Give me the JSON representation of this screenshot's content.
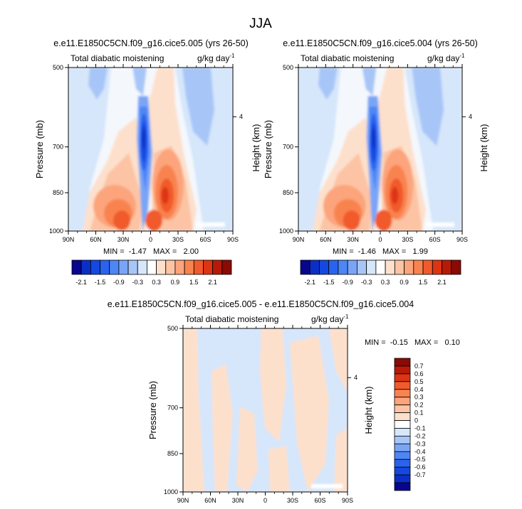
{
  "figure_title": "JJA",
  "panels": [
    {
      "title": "e.e11.E1850C5CN.f09_g16.cice5.005 (yrs 26-50)",
      "left_string": "Total diabatic moistening",
      "right_string": "g/kg day",
      "right_string_sup": "-1",
      "ylabel": "Pressure (mb)",
      "ylabel_right": "Height (km)",
      "minmax": "MIN =  -1.47   MAX =   2.00"
    },
    {
      "title": "e.e11.E1850C5CN.f09_g16.cice5.004 (yrs 26-50)",
      "left_string": "Total diabatic moistening",
      "right_string": "g/kg day",
      "right_string_sup": "-1",
      "ylabel": "Pressure (mb)",
      "ylabel_right": "Height (km)",
      "minmax": "MIN =  -1.46   MAX =   1.99"
    },
    {
      "title": "e.e11.E1850C5CN.f09_g16.cice5.005 - e.e11.E1850C5CN.f09_g16.cice5.004",
      "left_string": "Total diabatic moistening",
      "right_string": "g/kg day",
      "right_string_sup": "-1",
      "ylabel": "Pressure (mb)",
      "ylabel_right": "Height (km)",
      "minmax": "MIN =  -0.15   MAX =   0.10"
    }
  ],
  "colorbar_main": {
    "colors": [
      "#08068e",
      "#0b2fc6",
      "#1448e0",
      "#2a63ee",
      "#4d86f5",
      "#7aa5f7",
      "#a7c6f7",
      "#d6e6fb",
      "#ffffff",
      "#fde0cc",
      "#fcc4a4",
      "#fca47c",
      "#f9834f",
      "#f15a2c",
      "#dd3413",
      "#b81a09",
      "#8b0a05"
    ],
    "labels": [
      "-2.1",
      "-1.5",
      "-0.9",
      "-0.3",
      "0.3",
      "0.9",
      "1.5",
      "2.1"
    ]
  },
  "colorbar_diff": {
    "colors": [
      "#8b0a05",
      "#b81a09",
      "#dd3413",
      "#f15a2c",
      "#f9834f",
      "#fca47c",
      "#fcc4a4",
      "#fde0cc",
      "#ffffff",
      "#d6e6fb",
      "#a7c6f7",
      "#7aa5f7",
      "#4d86f5",
      "#2a63ee",
      "#1448e0",
      "#0b2fc6",
      "#08068e"
    ],
    "labels": [
      "0.7",
      "0.6",
      "0.5",
      "0.4",
      "0.3",
      "0.2",
      "0.1",
      "0",
      "-0.1",
      "-0.2",
      "-0.3",
      "-0.4",
      "-0.5",
      "-0.6",
      "-0.7"
    ]
  },
  "chart_data": [
    {
      "type": "heatmap",
      "title": "e.e11.E1850C5CN.f09_g16.cice5.005 (yrs 26-50)",
      "xlabel": "",
      "ylabel": "Pressure (mb)",
      "x_ticks": [
        "90N",
        "60N",
        "30N",
        "0",
        "30S",
        "60S",
        "90S"
      ],
      "y_ticks": [
        500,
        700,
        850,
        1000
      ],
      "right_axis_label": "Height (km)",
      "right_axis_ticks": [
        4
      ],
      "x_range": [
        "90N",
        "90S"
      ],
      "y_range": [
        1000,
        500
      ],
      "min": -1.47,
      "max": 2.0,
      "units": "g/kg day-1",
      "contour_levels": [
        -2.1,
        -1.8,
        -1.5,
        -1.2,
        -0.9,
        -0.6,
        -0.3,
        0,
        0.3,
        0.6,
        0.9,
        1.2,
        1.5,
        1.8,
        2.1
      ]
    },
    {
      "type": "heatmap",
      "title": "e.e11.E1850C5CN.f09_g16.cice5.004 (yrs 26-50)",
      "xlabel": "",
      "ylabel": "Pressure (mb)",
      "x_ticks": [
        "90N",
        "60N",
        "30N",
        "0",
        "30S",
        "60S",
        "90S"
      ],
      "y_ticks": [
        500,
        700,
        850,
        1000
      ],
      "right_axis_label": "Height (km)",
      "right_axis_ticks": [
        4
      ],
      "x_range": [
        "90N",
        "90S"
      ],
      "y_range": [
        1000,
        500
      ],
      "min": -1.46,
      "max": 1.99,
      "units": "g/kg day-1",
      "contour_levels": [
        -2.1,
        -1.8,
        -1.5,
        -1.2,
        -0.9,
        -0.6,
        -0.3,
        0,
        0.3,
        0.6,
        0.9,
        1.2,
        1.5,
        1.8,
        2.1
      ]
    },
    {
      "type": "heatmap",
      "title": "e.e11.E1850C5CN.f09_g16.cice5.005 - e.e11.E1850C5CN.f09_g16.cice5.004",
      "xlabel": "",
      "ylabel": "Pressure (mb)",
      "x_ticks": [
        "90N",
        "60N",
        "30N",
        "0",
        "30S",
        "60S",
        "90S"
      ],
      "y_ticks": [
        500,
        700,
        850,
        1000
      ],
      "right_axis_label": "Height (km)",
      "right_axis_ticks": [
        4
      ],
      "x_range": [
        "90N",
        "90S"
      ],
      "y_range": [
        1000,
        500
      ],
      "min": -0.15,
      "max": 0.1,
      "units": "g/kg day-1",
      "contour_levels": [
        -0.7,
        -0.6,
        -0.5,
        -0.4,
        -0.3,
        -0.2,
        -0.1,
        0,
        0.1,
        0.2,
        0.3,
        0.4,
        0.5,
        0.6,
        0.7
      ]
    }
  ]
}
